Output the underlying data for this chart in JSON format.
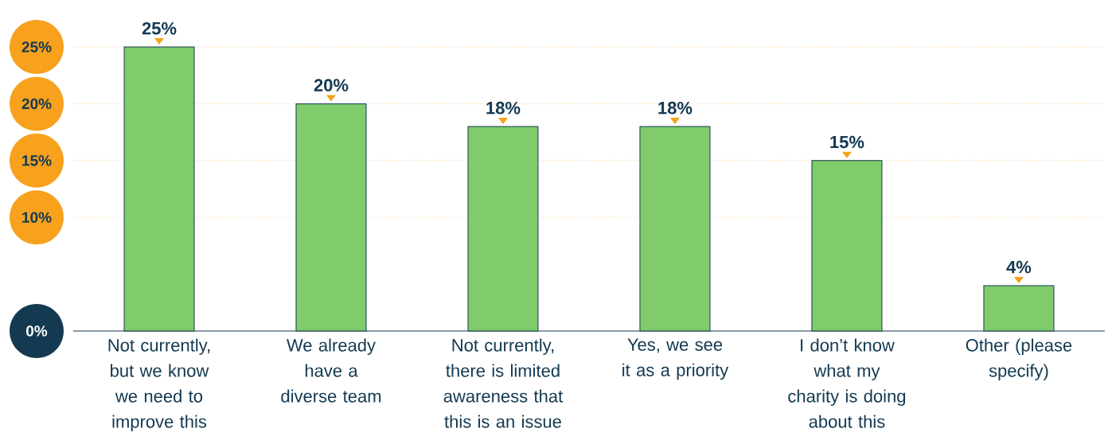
{
  "chart_data": {
    "type": "bar",
    "categories": [
      "Not currently, but we know we need to improve this",
      "We already have a diverse team",
      "Not currently, there is limited awareness that this is an issue",
      "Yes, we see it as a priority",
      "I don’t know what my charity is doing about this",
      "Other (please specify)"
    ],
    "values": [
      25,
      20,
      18,
      18,
      15,
      4
    ],
    "value_labels": [
      "25%",
      "20%",
      "18%",
      "18%",
      "15%",
      "4%"
    ],
    "color": "#80cb6b",
    "ylim": [
      0,
      25
    ],
    "yticks": [
      {
        "value": 0,
        "label": "0%"
      },
      {
        "value": 10,
        "label": "10%"
      },
      {
        "value": 15,
        "label": "15%"
      },
      {
        "value": 20,
        "label": "20%"
      },
      {
        "value": 25,
        "label": "25%"
      }
    ],
    "grid": "y"
  }
}
